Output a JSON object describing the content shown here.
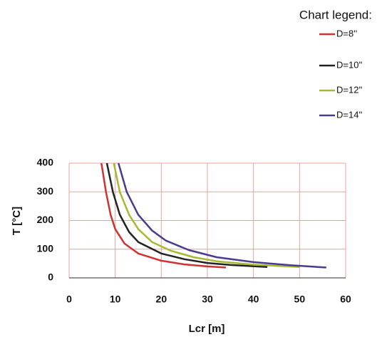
{
  "chart_data": {
    "type": "line",
    "xlabel": "Lcr [m]",
    "ylabel": "T [°C]",
    "legend_title": "Chart legend:",
    "legend_position": "upper right",
    "xlim": [
      0,
      60
    ],
    "xticks": [
      0,
      10,
      20,
      30,
      40,
      50,
      60
    ],
    "ylim": [
      0,
      400
    ],
    "yticks": [
      0,
      100,
      200,
      300,
      400
    ],
    "grid": true,
    "series": [
      {
        "name": "D=8''",
        "color": "#d03232",
        "x": [
          7,
          8,
          9,
          10,
          12,
          15,
          20,
          25,
          30,
          34
        ],
        "values": [
          400,
          300,
          220,
          170,
          120,
          85,
          60,
          47,
          40,
          36
        ]
      },
      {
        "name": "D=10''",
        "color": "#222222",
        "x": [
          8.2,
          9.5,
          11,
          13,
          15,
          20,
          25,
          30,
          35,
          43
        ],
        "values": [
          400,
          300,
          220,
          160,
          125,
          85,
          65,
          52,
          45,
          38
        ]
      },
      {
        "name": "D=12''",
        "color": "#a8b830",
        "x": [
          9.7,
          11,
          13,
          15,
          18,
          22,
          27,
          32,
          40,
          50
        ],
        "values": [
          400,
          300,
          220,
          170,
          125,
          95,
          72,
          58,
          46,
          38
        ]
      },
      {
        "name": "D=14''",
        "color": "#4a3a90",
        "x": [
          10.7,
          12.5,
          15,
          18,
          21,
          26,
          32,
          40,
          48,
          55.8
        ],
        "values": [
          400,
          300,
          220,
          165,
          130,
          97,
          72,
          55,
          44,
          36
        ]
      }
    ]
  }
}
